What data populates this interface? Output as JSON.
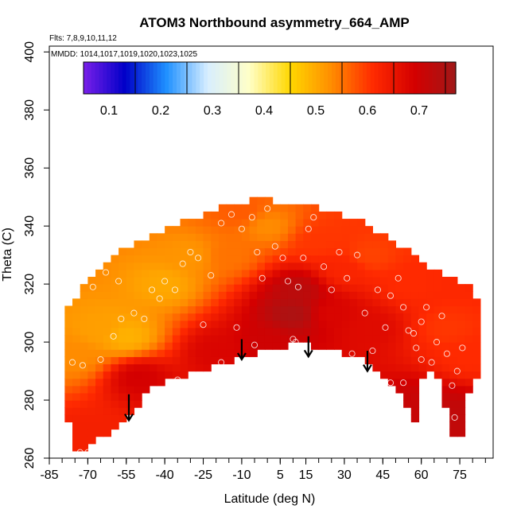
{
  "chart_data": {
    "type": "heatmap",
    "title": "ATOM3 Northbound asymmetry_664_AMP",
    "flights_note": "Flts: 7,8,9,10,11,12",
    "dates_note": "MMDD: 1014,1017,1019,1020,1023,1025",
    "xlabel": "Latitude (deg N)",
    "ylabel": "Theta (C)",
    "xlim": [
      -85,
      88
    ],
    "ylim": [
      260,
      402
    ],
    "x_ticks": [
      -85,
      -70,
      -55,
      -40,
      -25,
      -10,
      5,
      15,
      30,
      45,
      60,
      75
    ],
    "y_ticks": [
      260,
      280,
      300,
      320,
      340,
      360,
      380,
      400
    ],
    "colorbar": {
      "range": [
        0,
        0.72
      ],
      "ticks": [
        0.1,
        0.2,
        0.3,
        0.4,
        0.5,
        0.6,
        0.7
      ],
      "colors": [
        "#7a1fe8",
        "#0000c8",
        "#1e90ff",
        "#d8eeff",
        "#ffffc8",
        "#ffd700",
        "#ff8c00",
        "#ff2a00",
        "#d40000",
        "#a01818"
      ]
    },
    "boundary_upper": [
      [
        -78,
        311
      ],
      [
        -75,
        315
      ],
      [
        -70,
        321
      ],
      [
        -65,
        326
      ],
      [
        -60,
        330
      ],
      [
        -55,
        333
      ],
      [
        -50,
        335
      ],
      [
        -45,
        337
      ],
      [
        -40,
        339
      ],
      [
        -35,
        341
      ],
      [
        -30,
        343
      ],
      [
        -25,
        344
      ],
      [
        -20,
        346
      ],
      [
        -15,
        347
      ],
      [
        -10,
        348
      ],
      [
        -5,
        349
      ],
      [
        0,
        349
      ],
      [
        5,
        348
      ],
      [
        10,
        348
      ],
      [
        15,
        347
      ],
      [
        20,
        346
      ],
      [
        25,
        345
      ],
      [
        30,
        343
      ],
      [
        35,
        342
      ],
      [
        40,
        340
      ],
      [
        45,
        337
      ],
      [
        50,
        334
      ],
      [
        55,
        331
      ],
      [
        60,
        328
      ],
      [
        65,
        325
      ],
      [
        70,
        323
      ],
      [
        75,
        321
      ],
      [
        80,
        318
      ],
      [
        84,
        311
      ]
    ],
    "boundary_lower": [
      [
        84,
        295
      ],
      [
        82,
        288
      ],
      [
        80,
        284
      ],
      [
        77,
        282
      ],
      [
        75,
        264
      ],
      [
        72,
        268
      ],
      [
        68,
        285
      ],
      [
        65,
        290
      ],
      [
        60,
        288
      ],
      [
        57,
        270
      ],
      [
        55,
        278
      ],
      [
        50,
        285
      ],
      [
        45,
        288
      ],
      [
        40,
        293
      ],
      [
        35,
        295
      ],
      [
        30,
        296
      ],
      [
        25,
        297
      ],
      [
        20,
        298
      ],
      [
        15,
        299
      ],
      [
        10,
        300
      ],
      [
        5,
        298
      ],
      [
        0,
        297
      ],
      [
        -5,
        296
      ],
      [
        -10,
        295
      ],
      [
        -15,
        293
      ],
      [
        -20,
        292
      ],
      [
        -25,
        290
      ],
      [
        -30,
        289
      ],
      [
        -35,
        288
      ],
      [
        -40,
        287
      ],
      [
        -45,
        284
      ],
      [
        -50,
        279
      ],
      [
        -55,
        274
      ],
      [
        -60,
        270
      ],
      [
        -65,
        267
      ],
      [
        -70,
        264
      ],
      [
        -73,
        261
      ],
      [
        -76,
        262
      ],
      [
        -78,
        275
      ],
      [
        -79,
        290
      ]
    ],
    "field_anchors": [
      {
        "lat": -65,
        "theta": 305,
        "value": 0.46
      },
      {
        "lat": -55,
        "theta": 302,
        "value": 0.44
      },
      {
        "lat": -75,
        "theta": 295,
        "value": 0.48
      },
      {
        "lat": -40,
        "theta": 320,
        "value": 0.45
      },
      {
        "lat": -30,
        "theta": 330,
        "value": 0.47
      },
      {
        "lat": -15,
        "theta": 330,
        "value": 0.5
      },
      {
        "lat": 0,
        "theta": 340,
        "value": 0.48
      },
      {
        "lat": 20,
        "theta": 335,
        "value": 0.55
      },
      {
        "lat": 40,
        "theta": 330,
        "value": 0.54
      },
      {
        "lat": 55,
        "theta": 320,
        "value": 0.56
      },
      {
        "lat": 70,
        "theta": 305,
        "value": 0.55
      },
      {
        "lat": 78,
        "theta": 295,
        "value": 0.56
      },
      {
        "lat": 10,
        "theta": 310,
        "value": 0.7
      },
      {
        "lat": 12,
        "theta": 318,
        "value": 0.68
      },
      {
        "lat": 25,
        "theta": 310,
        "value": 0.63
      },
      {
        "lat": 40,
        "theta": 305,
        "value": 0.62
      },
      {
        "lat": -50,
        "theta": 288,
        "value": 0.64
      },
      {
        "lat": -20,
        "theta": 297,
        "value": 0.63
      },
      {
        "lat": 0,
        "theta": 300,
        "value": 0.65
      },
      {
        "lat": 60,
        "theta": 278,
        "value": 0.66
      },
      {
        "lat": 73,
        "theta": 275,
        "value": 0.67
      },
      {
        "lat": -70,
        "theta": 268,
        "value": 0.58
      },
      {
        "lat": -10,
        "theta": 345,
        "value": 0.52
      },
      {
        "lat": 30,
        "theta": 325,
        "value": 0.57
      }
    ],
    "observation_points": [
      [
        -76,
        293
      ],
      [
        -72,
        292
      ],
      [
        -65,
        294
      ],
      [
        -60,
        302
      ],
      [
        -57,
        308
      ],
      [
        -52,
        310
      ],
      [
        -45,
        318
      ],
      [
        -42,
        315
      ],
      [
        -40,
        321
      ],
      [
        -36,
        318
      ],
      [
        -33,
        327
      ],
      [
        -30,
        331
      ],
      [
        -27,
        329
      ],
      [
        -22,
        323
      ],
      [
        -18,
        341
      ],
      [
        -14,
        344
      ],
      [
        -10,
        339
      ],
      [
        -6,
        343
      ],
      [
        -4,
        331
      ],
      [
        -2,
        322
      ],
      [
        0,
        346
      ],
      [
        3,
        333
      ],
      [
        6,
        329
      ],
      [
        8,
        321
      ],
      [
        10,
        301
      ],
      [
        11,
        300
      ],
      [
        12,
        319
      ],
      [
        14,
        329
      ],
      [
        16,
        339
      ],
      [
        18,
        343
      ],
      [
        22,
        326
      ],
      [
        25,
        318
      ],
      [
        28,
        331
      ],
      [
        31,
        322
      ],
      [
        35,
        330
      ],
      [
        38,
        310
      ],
      [
        41,
        297
      ],
      [
        43,
        318
      ],
      [
        46,
        305
      ],
      [
        48,
        316
      ],
      [
        51,
        322
      ],
      [
        53,
        312
      ],
      [
        55,
        304
      ],
      [
        58,
        298
      ],
      [
        60,
        307
      ],
      [
        62,
        312
      ],
      [
        64,
        293
      ],
      [
        66,
        300
      ],
      [
        68,
        309
      ],
      [
        70,
        296
      ],
      [
        72,
        285
      ],
      [
        73,
        274
      ],
      [
        74,
        290
      ],
      [
        76,
        298
      ],
      [
        -5,
        299
      ],
      [
        -18,
        293
      ],
      [
        -35,
        287
      ],
      [
        -48,
        308
      ],
      [
        -58,
        321
      ],
      [
        -63,
        324
      ],
      [
        -68,
        319
      ],
      [
        -70,
        262
      ],
      [
        -73,
        262
      ],
      [
        48,
        286
      ],
      [
        53,
        286
      ],
      [
        57,
        303
      ],
      [
        60,
        294
      ],
      [
        20,
        296
      ],
      [
        33,
        296
      ],
      [
        -25,
        306
      ],
      [
        -12,
        305
      ]
    ],
    "arrows": [
      [
        -54,
        282,
        273
      ],
      [
        -10,
        301,
        294
      ],
      [
        16,
        302,
        295
      ],
      [
        39,
        297,
        290
      ]
    ]
  }
}
